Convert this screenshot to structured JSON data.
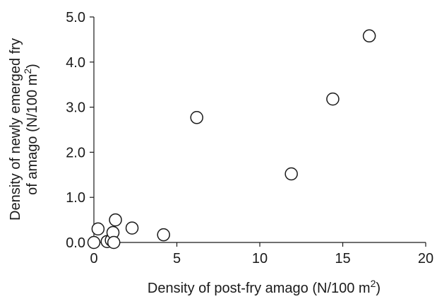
{
  "chart_data": {
    "type": "scatter",
    "xlabel": "Density of post-fry amago (N/100 m",
    "xlabel_sup": "2",
    "xlabel_close": ")",
    "ylabel_line1": "Density of newly emerged fry",
    "ylabel_line2": "of amago (N/100 m",
    "ylabel_sup": "2",
    "ylabel_close": ")",
    "xlim": [
      0,
      20
    ],
    "ylim": [
      0,
      5
    ],
    "x_ticks": [
      0,
      5,
      10,
      15,
      20
    ],
    "x_tick_labels": [
      "0",
      "5",
      "10",
      "15",
      "20"
    ],
    "y_ticks": [
      0,
      1,
      2,
      3,
      4,
      5
    ],
    "y_tick_labels": [
      "0.0",
      "1.0",
      "2.0",
      "3.0",
      "4.0",
      "5.0"
    ],
    "grid": false,
    "marker": "open-circle",
    "series": [
      {
        "points": [
          {
            "x": 0.0,
            "y": 0.0
          },
          {
            "x": 0.25,
            "y": 0.3
          },
          {
            "x": 0.8,
            "y": 0.02
          },
          {
            "x": 1.05,
            "y": 0.05
          },
          {
            "x": 1.15,
            "y": 0.22
          },
          {
            "x": 1.3,
            "y": 0.5
          },
          {
            "x": 1.2,
            "y": 0.0
          },
          {
            "x": 2.3,
            "y": 0.32
          },
          {
            "x": 4.2,
            "y": 0.17
          },
          {
            "x": 6.2,
            "y": 2.77
          },
          {
            "x": 11.9,
            "y": 1.52
          },
          {
            "x": 14.4,
            "y": 3.18
          },
          {
            "x": 16.6,
            "y": 4.58
          }
        ]
      }
    ]
  }
}
